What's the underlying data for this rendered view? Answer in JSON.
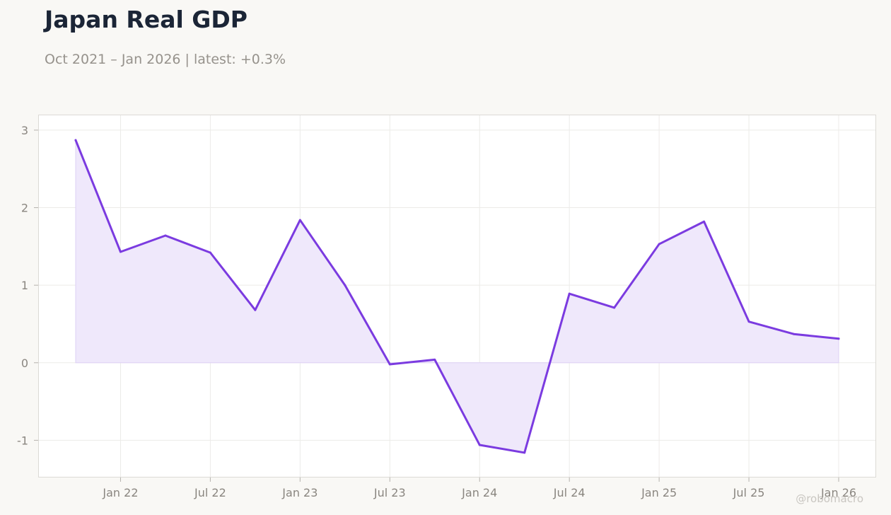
{
  "header": {
    "title": "Japan Real GDP",
    "subtitle": "Oct 2021 – Jan 2026 | latest: +0.3%"
  },
  "watermark": "@robomacro",
  "colors": {
    "line": "#7b3be0",
    "fill": "#efe8fb",
    "grid": "#ecebe8",
    "frame": "#dcdad6",
    "background": "#f9f8f5",
    "plot_background": "#ffffff"
  },
  "chart_data": {
    "type": "area",
    "title": "Japan Real GDP",
    "xlabel": "",
    "ylabel": "",
    "x": [
      "2021-10",
      "2022-01",
      "2022-04",
      "2022-07",
      "2022-10",
      "2023-01",
      "2023-04",
      "2023-07",
      "2023-10",
      "2024-01",
      "2024-04",
      "2024-07",
      "2024-10",
      "2025-01",
      "2025-04",
      "2025-07",
      "2025-10",
      "2026-01"
    ],
    "series": [
      {
        "values": [
          2.87,
          1.43,
          1.64,
          1.42,
          0.68,
          1.84,
          1.0,
          -0.02,
          0.04,
          -1.06,
          -1.16,
          0.89,
          0.71,
          1.53,
          1.82,
          0.53,
          0.37,
          0.31
        ]
      }
    ],
    "ylim": [
      -1.48,
      3.2
    ],
    "y_ticks": [
      3,
      2,
      1,
      0,
      -1
    ],
    "x_ticks": [
      {
        "label": "Jan 22",
        "date": "2022-01"
      },
      {
        "label": "Jul 22",
        "date": "2022-07"
      },
      {
        "label": "Jan 23",
        "date": "2023-01"
      },
      {
        "label": "Jul 23",
        "date": "2023-07"
      },
      {
        "label": "Jan 24",
        "date": "2024-01"
      },
      {
        "label": "Jul 24",
        "date": "2024-07"
      },
      {
        "label": "Jan 25",
        "date": "2025-01"
      },
      {
        "label": "Jul 25",
        "date": "2025-07"
      },
      {
        "label": "Jan 26",
        "date": "2026-01"
      }
    ],
    "grid": true,
    "legend": "none"
  }
}
